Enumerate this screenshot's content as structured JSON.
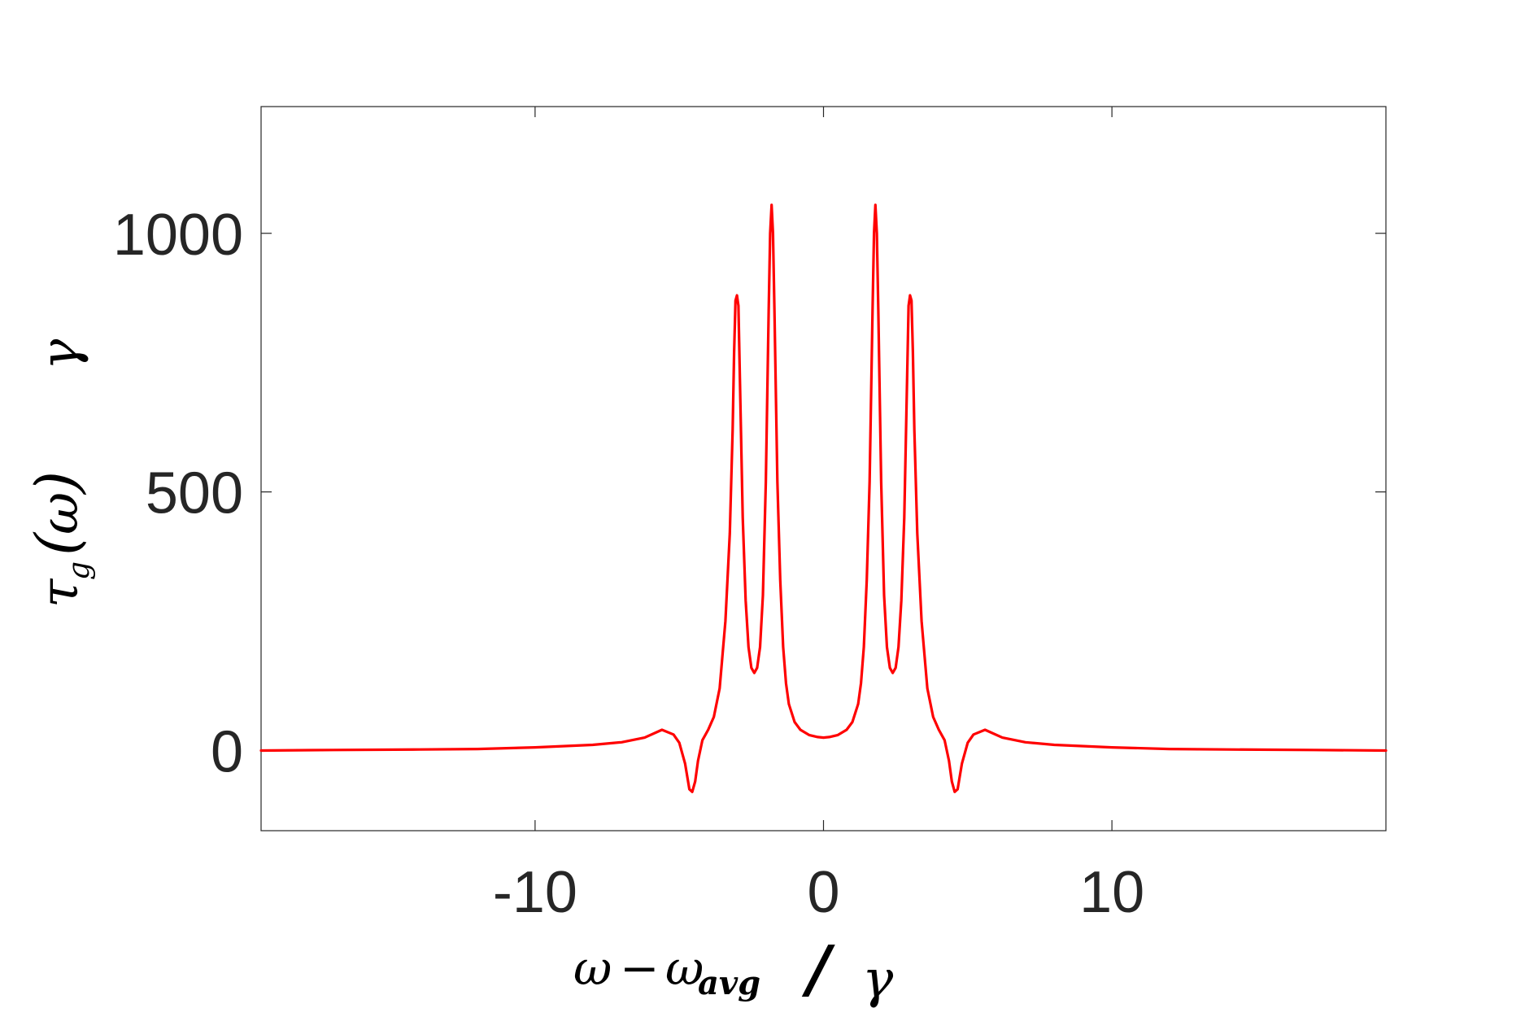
{
  "chart_data": {
    "type": "line",
    "title": "",
    "xlabel": "ω − ω_avg/ γ",
    "ylabel": "τ_g(ω) γ",
    "xlim": [
      -19.5,
      19.5
    ],
    "ylim": [
      -155,
      1245
    ],
    "x_ticks": [
      -10,
      0,
      10
    ],
    "x_tick_labels": [
      "-10",
      "0",
      "10"
    ],
    "y_ticks": [
      0,
      500,
      1000
    ],
    "y_tick_labels": [
      "0",
      "500",
      "1000"
    ],
    "grid": false,
    "legend": "none",
    "series": [
      {
        "color": "#ff0000",
        "x": [
          -19.5,
          -17,
          -14,
          -12,
          -10,
          -8,
          -7,
          -6.2,
          -5.6,
          -5.2,
          -5.0,
          -4.8,
          -4.65,
          -4.55,
          -4.45,
          -4.35,
          -4.2,
          -4.0,
          -3.8,
          -3.6,
          -3.4,
          -3.25,
          -3.15,
          -3.1,
          -3.05,
          -3.0,
          -2.95,
          -2.9,
          -2.8,
          -2.7,
          -2.6,
          -2.5,
          -2.4,
          -2.3,
          -2.2,
          -2.1,
          -2.0,
          -1.9,
          -1.85,
          -1.8,
          -1.75,
          -1.7,
          -1.6,
          -1.5,
          -1.4,
          -1.3,
          -1.2,
          -1.0,
          -0.8,
          -0.5,
          -0.2,
          0,
          0.2,
          0.5,
          0.8,
          1.0,
          1.2,
          1.3,
          1.4,
          1.5,
          1.6,
          1.7,
          1.75,
          1.8,
          1.85,
          1.9,
          2.0,
          2.1,
          2.2,
          2.3,
          2.4,
          2.5,
          2.6,
          2.7,
          2.8,
          2.9,
          2.95,
          3.0,
          3.05,
          3.1,
          3.15,
          3.25,
          3.4,
          3.6,
          3.8,
          4.0,
          4.2,
          4.35,
          4.45,
          4.55,
          4.65,
          4.8,
          5.0,
          5.2,
          5.6,
          6.2,
          7,
          8,
          10,
          12,
          14,
          17,
          19.5
        ],
        "y": [
          0,
          1,
          2,
          3,
          6,
          11,
          16,
          25,
          40,
          31,
          15,
          -25,
          -75,
          -80,
          -60,
          -20,
          20,
          40,
          65,
          120,
          250,
          420,
          620,
          770,
          870,
          880,
          860,
          720,
          450,
          290,
          200,
          160,
          150,
          160,
          200,
          300,
          520,
          850,
          1000,
          1055,
          1000,
          850,
          520,
          330,
          200,
          130,
          90,
          55,
          40,
          30,
          26,
          25,
          26,
          30,
          40,
          55,
          90,
          130,
          200,
          330,
          520,
          850,
          1000,
          1055,
          1000,
          850,
          520,
          300,
          200,
          160,
          150,
          160,
          200,
          290,
          450,
          720,
          860,
          880,
          870,
          770,
          620,
          420,
          250,
          120,
          65,
          40,
          20,
          -20,
          -60,
          -80,
          -75,
          -25,
          15,
          31,
          40,
          25,
          16,
          11,
          6,
          3,
          2,
          1,
          0
        ]
      }
    ]
  }
}
